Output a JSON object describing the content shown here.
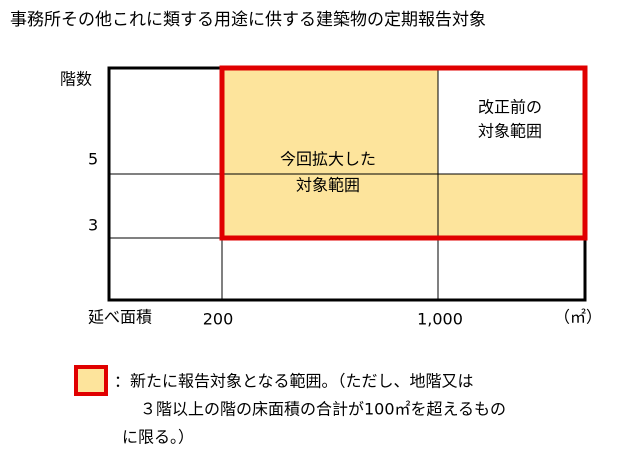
{
  "title": "事務所その他これに類する用途に供する建築物の定期報告対象",
  "axes": {
    "y_label": "階数",
    "y_marks": [
      "5",
      "3"
    ],
    "x_label": "延べ面積",
    "x_marks": [
      "200",
      "1,000"
    ],
    "unit": "（㎡）"
  },
  "regions": {
    "new": [
      "今回拡大した",
      "対象範囲"
    ],
    "old": [
      "改正前の",
      "対象範囲"
    ]
  },
  "legend": {
    "lines": [
      "：新たに報告対象となる範囲。（ただし、地階又は",
      "３階以上の階の床面積の合計が100㎡を超えるもの",
      "に限る。）"
    ]
  }
}
